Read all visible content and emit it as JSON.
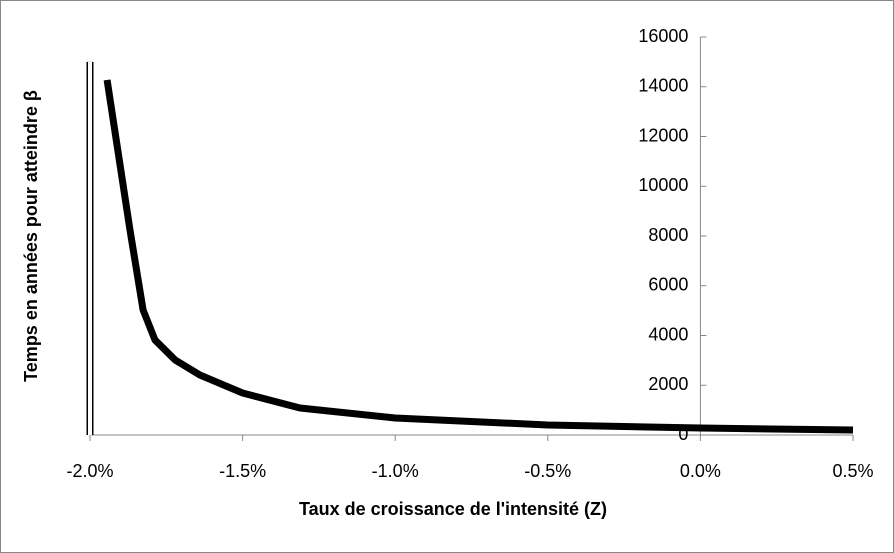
{
  "chart_data": {
    "type": "line",
    "x_label": "Taux de croissance de l'intensité (Z)",
    "y_label": "Temps en années pour atteindre β",
    "series": [
      {
        "color": "#000000",
        "x": [
          -1.944,
          -1.869,
          -1.826,
          -1.787,
          -1.721,
          -1.64,
          -1.5,
          -1.312,
          -1.0,
          -0.5,
          0.0,
          0.5
        ],
        "values": [
          14271,
          8241,
          5025,
          3819,
          3015,
          2412,
          1688,
          1085,
          683,
          402,
          281,
          201
        ]
      },
      {
        "color": "#ffffff",
        "x": [
          -2.0,
          -2.0
        ],
        "values": [
          0,
          15000
        ]
      }
    ],
    "xlim": [
      -2.0,
      0.5
    ],
    "xticks": [
      {
        "value": -2.0,
        "label": "-2.0%"
      },
      {
        "value": -1.5,
        "label": "-1.5%"
      },
      {
        "value": -1.0,
        "label": "-1.0%"
      },
      {
        "value": -0.5,
        "label": "-0.5%"
      },
      {
        "value": 0.0,
        "label": "0.0%"
      },
      {
        "value": 0.5,
        "label": "0.5%"
      }
    ],
    "ylim": [
      0,
      16000
    ],
    "yticks": [
      0,
      2000,
      4000,
      6000,
      8000,
      10000,
      12000,
      14000,
      16000
    ],
    "grid": false
  }
}
